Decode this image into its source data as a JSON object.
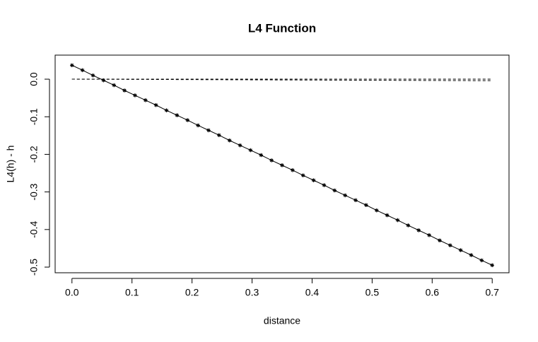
{
  "chart_data": {
    "type": "line",
    "title": "L4 Function",
    "x_label": "distance",
    "y_label": "L4(h) - h",
    "x": [
      0,
      0.0175,
      0.035,
      0.0525,
      0.07,
      0.0875,
      0.105,
      0.1225,
      0.14,
      0.1575,
      0.175,
      0.1925,
      0.21,
      0.2275,
      0.245,
      0.2625,
      0.28,
      0.2975,
      0.315,
      0.3325,
      0.35,
      0.3675,
      0.385,
      0.4025,
      0.42,
      0.4375,
      0.455,
      0.4725,
      0.49,
      0.5075,
      0.525,
      0.5425,
      0.56,
      0.5775,
      0.595,
      0.6125,
      0.63,
      0.6475,
      0.665,
      0.6825,
      0.7
    ],
    "series": [
      {
        "color": "#000000",
        "line": "solid",
        "marker": "star",
        "values": [
          0.037,
          0.024,
          0.01,
          -0.003,
          -0.016,
          -0.03,
          -0.043,
          -0.056,
          -0.069,
          -0.083,
          -0.096,
          -0.109,
          -0.123,
          -0.136,
          -0.149,
          -0.163,
          -0.176,
          -0.189,
          -0.202,
          -0.216,
          -0.229,
          -0.242,
          -0.256,
          -0.269,
          -0.282,
          -0.296,
          -0.309,
          -0.322,
          -0.335,
          -0.349,
          -0.362,
          -0.375,
          -0.389,
          -0.402,
          -0.415,
          -0.429,
          -0.442,
          -0.455,
          -0.468,
          -0.482,
          -0.495
        ]
      },
      {
        "color": "#000000",
        "line": "dashed",
        "values": [
          0,
          0,
          0,
          0,
          0,
          0,
          0,
          0,
          0,
          0,
          0,
          0,
          0,
          0,
          0,
          0,
          0,
          0,
          0,
          0,
          0,
          0,
          0,
          0,
          0,
          0,
          0,
          0,
          0,
          0,
          0,
          0,
          0,
          0,
          0,
          0,
          0,
          0,
          0,
          0,
          0
        ]
      },
      {
        "color": "#000000",
        "line": "dashed",
        "values": [
          0,
          -0.0001,
          -0.0002,
          -0.0003,
          -0.0004,
          -0.0005,
          -0.0006,
          -0.0007,
          -0.0008,
          -0.0009,
          -0.001,
          -0.0011,
          -0.0012,
          -0.0013,
          -0.0014,
          -0.0015,
          -0.0016,
          -0.0017,
          -0.0018,
          -0.0019,
          -0.002,
          -0.0021,
          -0.0022,
          -0.0023,
          -0.0024,
          -0.0025,
          -0.0026,
          -0.0027,
          -0.0028,
          -0.0029,
          -0.003,
          -0.0031,
          -0.0032,
          -0.0033,
          -0.0034,
          -0.0035,
          -0.0036,
          -0.0037,
          -0.0038,
          -0.0039,
          -0.004
        ]
      }
    ],
    "xlim": [
      -0.028,
      0.728
    ],
    "ylim": [
      -0.515,
      0.064
    ],
    "xticks": [
      {
        "value": 0,
        "label": "0.0"
      },
      0.1,
      0.2,
      0.3,
      0.4,
      0.5,
      0.6,
      0.7
    ],
    "yticks": [
      {
        "value": 0,
        "label": "0.0"
      },
      -0.1,
      -0.2,
      -0.3,
      -0.4,
      -0.5
    ],
    "grid": false
  }
}
